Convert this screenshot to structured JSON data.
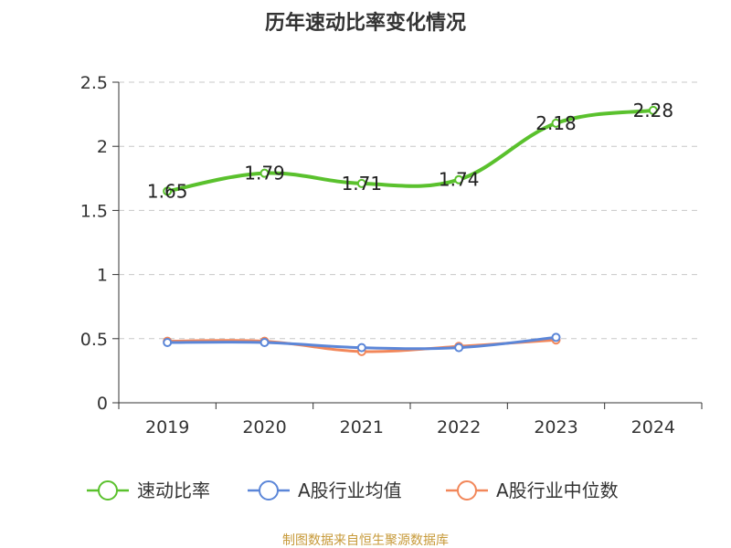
{
  "chart_data": {
    "type": "line",
    "title": "历年速动比率变化情况",
    "categories": [
      "2019",
      "2020",
      "2021",
      "2022",
      "2023",
      "2024"
    ],
    "ylim": [
      0,
      2.5
    ],
    "yticks": [
      "0",
      "0.5",
      "1",
      "1.5",
      "2",
      "2.5"
    ],
    "grid": true,
    "legend_position": "bottom",
    "series": [
      {
        "name": "速动比率",
        "color": "#5ac12d",
        "values": [
          1.65,
          1.79,
          1.71,
          1.74,
          2.18,
          2.28
        ],
        "labels": [
          "1.65",
          "1.79",
          "1.71",
          "1.74",
          "2.18",
          "2.28"
        ]
      },
      {
        "name": "A股行业均值",
        "color": "#5b86d8",
        "values": [
          0.47,
          0.47,
          0.43,
          0.43,
          0.51,
          null
        ]
      },
      {
        "name": "A股行业中位数",
        "color": "#f2875a",
        "values": [
          0.48,
          0.48,
          0.4,
          0.44,
          0.49,
          null
        ]
      }
    ],
    "source": "制图数据来自恒生聚源数据库"
  }
}
